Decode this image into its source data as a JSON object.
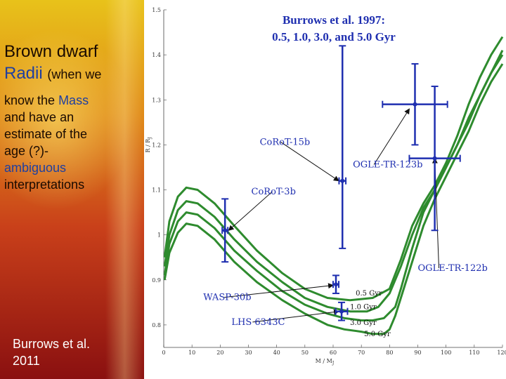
{
  "slide": {
    "heading": {
      "line1": "Brown dwarf",
      "radii": "Radii",
      "when_we": "(when we"
    },
    "body": {
      "know_the": "know the",
      "mass": "Mass",
      "rest1": "and have an",
      "rest2": "estimate of the",
      "rest3": "age (?)-",
      "ambiguous": "ambiguous",
      "interpretations": "interpretations"
    },
    "citation_line1": "Burrows et al.",
    "citation_line2": "2011",
    "colors": {
      "curves": "#2e8b2e",
      "points": "#1f2fb0",
      "annotations": "#1f2fb0"
    }
  },
  "chart_data": {
    "type": "scatter",
    "title_line1": "Burrows et al. 1997:",
    "title_line2": "0.5, 1.0, 3.0, and 5.0 Gyr",
    "xlabel": "M / M",
    "xlabel_sub": "J",
    "ylabel": "R / R",
    "ylabel_sub": "J",
    "xlim": [
      0,
      120
    ],
    "ylim": [
      0.75,
      1.5
    ],
    "xticks": [
      0,
      10,
      20,
      30,
      40,
      50,
      60,
      70,
      80,
      90,
      100,
      110,
      120
    ],
    "yticks": [
      0.8,
      0.9,
      1,
      1.1,
      1.2,
      1.3,
      1.4,
      1.5
    ],
    "ytick_labels": [
      "0.8",
      "0.9",
      "1",
      "1.1",
      "1.2",
      "1.3",
      "1.4",
      "1.5"
    ],
    "series": [
      {
        "name": "0.5 Gyr",
        "x": [
          0.3,
          2,
          5,
          8,
          12,
          18,
          25,
          33,
          42,
          50,
          58,
          66,
          74,
          80,
          84,
          88,
          92,
          96,
          100,
          104,
          108,
          112,
          116,
          120
        ],
        "y": [
          0.95,
          1.03,
          1.085,
          1.105,
          1.1,
          1.07,
          1.02,
          0.965,
          0.915,
          0.88,
          0.86,
          0.855,
          0.86,
          0.88,
          0.945,
          1.02,
          1.07,
          1.11,
          1.16,
          1.22,
          1.29,
          1.35,
          1.4,
          1.44
        ]
      },
      {
        "name": "1.0 Gyr",
        "x": [
          0.3,
          2,
          5,
          8,
          12,
          18,
          25,
          33,
          42,
          50,
          58,
          66,
          72,
          76,
          80,
          84,
          88,
          92,
          96,
          100,
          104,
          108,
          112,
          116,
          120
        ],
        "y": [
          0.93,
          1.0,
          1.055,
          1.075,
          1.07,
          1.04,
          0.99,
          0.94,
          0.895,
          0.86,
          0.84,
          0.83,
          0.83,
          0.84,
          0.87,
          0.93,
          1.0,
          1.06,
          1.1,
          1.15,
          1.2,
          1.26,
          1.31,
          1.36,
          1.41
        ]
      },
      {
        "name": "3.0 Gyr",
        "x": [
          0.3,
          2,
          5,
          8,
          12,
          18,
          25,
          33,
          42,
          50,
          58,
          64,
          70,
          74,
          78,
          82,
          84,
          88,
          92,
          96,
          100,
          104,
          108,
          112,
          116,
          120
        ],
        "y": [
          0.91,
          0.98,
          1.03,
          1.05,
          1.045,
          1.015,
          0.965,
          0.92,
          0.875,
          0.845,
          0.825,
          0.815,
          0.81,
          0.81,
          0.815,
          0.84,
          0.88,
          0.97,
          1.05,
          1.1,
          1.15,
          1.2,
          1.25,
          1.31,
          1.36,
          1.4
        ]
      },
      {
        "name": "5.0 Gyr",
        "x": [
          0.3,
          2,
          5,
          8,
          12,
          18,
          25,
          33,
          42,
          50,
          58,
          64,
          70,
          74,
          78,
          80,
          82,
          84,
          88,
          92,
          96,
          100,
          104,
          108,
          112,
          116,
          120
        ],
        "y": [
          0.9,
          0.96,
          1.005,
          1.025,
          1.02,
          0.99,
          0.94,
          0.895,
          0.855,
          0.825,
          0.8,
          0.79,
          0.785,
          0.78,
          0.78,
          0.79,
          0.82,
          0.86,
          0.94,
          1.02,
          1.08,
          1.13,
          1.18,
          1.23,
          1.29,
          1.34,
          1.38
        ]
      }
    ],
    "points": [
      {
        "name": "CoRoT-3b",
        "x": 21.7,
        "y": 1.01,
        "xerr": 1.0,
        "yerr": [
          0.07,
          0.07
        ]
      },
      {
        "name": "CoRoT-15b",
        "x": 63.3,
        "y": 1.12,
        "xerr": 1.2,
        "yerr": [
          0.3,
          0.15
        ]
      },
      {
        "name": "OGLE-TR-123b",
        "x": 89,
        "y": 1.29,
        "xerr": 11.5,
        "yerr": [
          0.09,
          0.09
        ]
      },
      {
        "name": "OGLE-TR-122b",
        "x": 96,
        "y": 1.17,
        "xerr": 9,
        "yerr": [
          0.16,
          0.16
        ]
      },
      {
        "name": "WASP-30b",
        "x": 61,
        "y": 0.89,
        "xerr": 1,
        "yerr": [
          0.02,
          0.02
        ]
      },
      {
        "name": "LHS 6343C",
        "x": 63,
        "y": 0.83,
        "xerr": 2.1,
        "yerr": [
          0.02,
          0.02
        ]
      }
    ],
    "annotations": [
      {
        "text": "CoRoT-15b",
        "x": 34,
        "y": 1.2,
        "target_x": 62,
        "target_y": 1.12
      },
      {
        "text": "CoRoT-3b",
        "x": 31,
        "y": 1.09,
        "target_x": 23,
        "target_y": 1.01
      },
      {
        "text": "OGLE-TR-123b",
        "x": 67,
        "y": 1.15,
        "target_x": 87,
        "target_y": 1.28
      },
      {
        "text": "OGLE-TR-122b",
        "x": 90,
        "y": 0.92,
        "target_x": 96,
        "target_y": 1.17
      },
      {
        "text": "WASP-30b",
        "x": 14,
        "y": 0.855,
        "target_x": 60,
        "target_y": 0.888
      },
      {
        "text": "LHS 6343C",
        "x": 24,
        "y": 0.8,
        "target_x": 62,
        "target_y": 0.83
      }
    ],
    "curve_labels": [
      {
        "text": "0.5 Gyr",
        "x": 68,
        "y": 0.865
      },
      {
        "text": "1.0 Gyr",
        "x": 66,
        "y": 0.835
      },
      {
        "text": "3.0 Gyr",
        "x": 66,
        "y": 0.8
      },
      {
        "text": "5.0 Gyr",
        "x": 71,
        "y": 0.775
      }
    ]
  }
}
